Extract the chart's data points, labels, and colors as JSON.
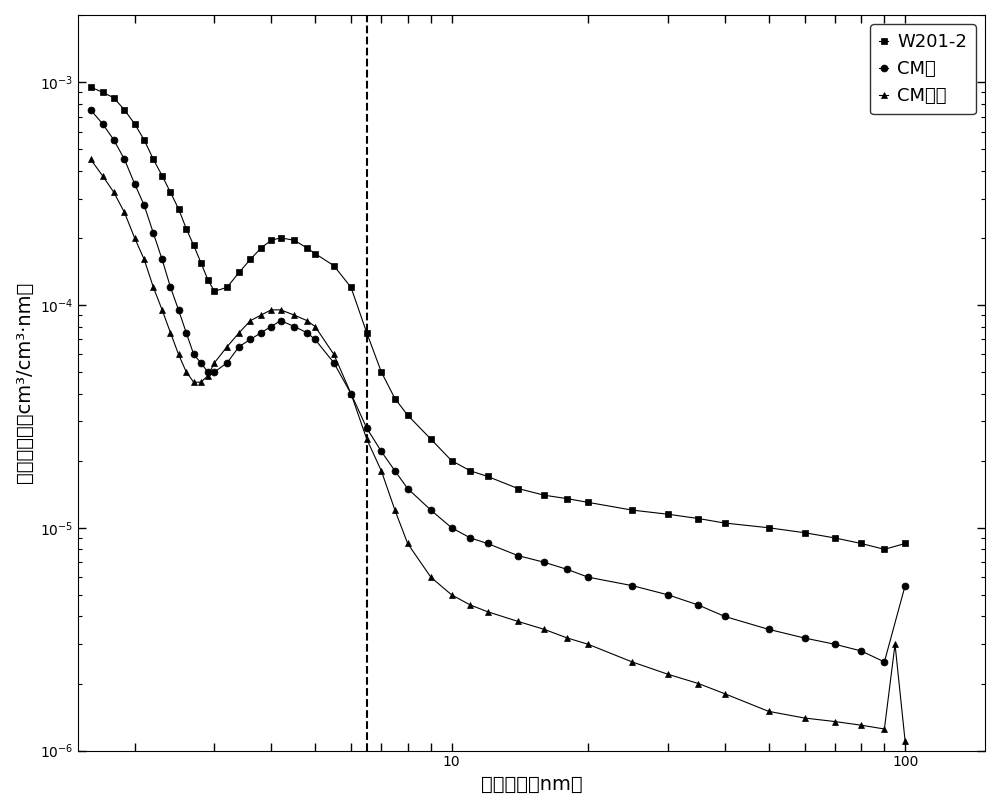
{
  "title": "",
  "xlabel": "孔隙直径（nm）",
  "ylabel": "孔体积分布（cm³/cm³·nm）",
  "xlim": [
    1.5,
    150
  ],
  "ylim": [
    1e-06,
    0.002
  ],
  "dashed_line_x": 6.5,
  "legend_labels": [
    "W201-2",
    "CM水",
    "CM甲苯"
  ],
  "markers": [
    "s",
    "o",
    "^"
  ],
  "color": "black",
  "series_W201_2": {
    "x": [
      1.6,
      1.7,
      1.8,
      1.9,
      2.0,
      2.1,
      2.2,
      2.3,
      2.4,
      2.5,
      2.6,
      2.7,
      2.8,
      2.9,
      3.0,
      3.2,
      3.4,
      3.6,
      3.8,
      4.0,
      4.2,
      4.5,
      4.8,
      5.0,
      5.5,
      6.0,
      6.5,
      7.0,
      7.5,
      8.0,
      9.0,
      10.0,
      11.0,
      12.0,
      14.0,
      16.0,
      18.0,
      20.0,
      25.0,
      30.0,
      35.0,
      40.0,
      50.0,
      60.0,
      70.0,
      80.0,
      90.0,
      100.0
    ],
    "y": [
      0.00095,
      0.0009,
      0.00085,
      0.00075,
      0.00065,
      0.00055,
      0.00045,
      0.00038,
      0.00032,
      0.00027,
      0.00022,
      0.000185,
      0.000155,
      0.00013,
      0.000115,
      0.00012,
      0.00014,
      0.00016,
      0.00018,
      0.000195,
      0.0002,
      0.000195,
      0.00018,
      0.00017,
      0.00015,
      0.00012,
      7.5e-05,
      5e-05,
      3.8e-05,
      3.2e-05,
      2.5e-05,
      2e-05,
      1.8e-05,
      1.7e-05,
      1.5e-05,
      1.4e-05,
      1.35e-05,
      1.3e-05,
      1.2e-05,
      1.15e-05,
      1.1e-05,
      1.05e-05,
      1e-05,
      9.5e-06,
      9e-06,
      8.5e-06,
      8e-06,
      8.5e-06
    ]
  },
  "series_CM_water": {
    "x": [
      1.6,
      1.7,
      1.8,
      1.9,
      2.0,
      2.1,
      2.2,
      2.3,
      2.4,
      2.5,
      2.6,
      2.7,
      2.8,
      2.9,
      3.0,
      3.2,
      3.4,
      3.6,
      3.8,
      4.0,
      4.2,
      4.5,
      4.8,
      5.0,
      5.5,
      6.0,
      6.5,
      7.0,
      7.5,
      8.0,
      9.0,
      10.0,
      11.0,
      12.0,
      14.0,
      16.0,
      18.0,
      20.0,
      25.0,
      30.0,
      35.0,
      40.0,
      50.0,
      60.0,
      70.0,
      80.0,
      90.0,
      100.0
    ],
    "y": [
      0.00075,
      0.00065,
      0.00055,
      0.00045,
      0.00035,
      0.00028,
      0.00021,
      0.00016,
      0.00012,
      9.5e-05,
      7.5e-05,
      6e-05,
      5.5e-05,
      5e-05,
      5e-05,
      5.5e-05,
      6.5e-05,
      7e-05,
      7.5e-05,
      8e-05,
      8.5e-05,
      8e-05,
      7.5e-05,
      7e-05,
      5.5e-05,
      4e-05,
      2.8e-05,
      2.2e-05,
      1.8e-05,
      1.5e-05,
      1.2e-05,
      1e-05,
      9e-06,
      8.5e-06,
      7.5e-06,
      7e-06,
      6.5e-06,
      6e-06,
      5.5e-06,
      5e-06,
      4.5e-06,
      4e-06,
      3.5e-06,
      3.2e-06,
      3e-06,
      2.8e-06,
      2.5e-06,
      5.5e-06
    ]
  },
  "series_CM_toluene": {
    "x": [
      1.6,
      1.7,
      1.8,
      1.9,
      2.0,
      2.1,
      2.2,
      2.3,
      2.4,
      2.5,
      2.6,
      2.7,
      2.8,
      2.9,
      3.0,
      3.2,
      3.4,
      3.6,
      3.8,
      4.0,
      4.2,
      4.5,
      4.8,
      5.0,
      5.5,
      6.0,
      6.5,
      7.0,
      7.5,
      8.0,
      9.0,
      10.0,
      11.0,
      12.0,
      14.0,
      16.0,
      18.0,
      20.0,
      25.0,
      30.0,
      35.0,
      40.0,
      50.0,
      60.0,
      70.0,
      80.0,
      90.0,
      95.0,
      100.0
    ],
    "y": [
      0.00045,
      0.00038,
      0.00032,
      0.00026,
      0.0002,
      0.00016,
      0.00012,
      9.5e-05,
      7.5e-05,
      6e-05,
      5e-05,
      4.5e-05,
      4.5e-05,
      4.8e-05,
      5.5e-05,
      6.5e-05,
      7.5e-05,
      8.5e-05,
      9e-05,
      9.5e-05,
      9.5e-05,
      9e-05,
      8.5e-05,
      8e-05,
      6e-05,
      4e-05,
      2.5e-05,
      1.8e-05,
      1.2e-05,
      8.5e-06,
      6e-06,
      5e-06,
      4.5e-06,
      4.2e-06,
      3.8e-06,
      3.5e-06,
      3.2e-06,
      3e-06,
      2.5e-06,
      2.2e-06,
      2e-06,
      1.8e-06,
      1.5e-06,
      1.4e-06,
      1.35e-06,
      1.3e-06,
      1.25e-06,
      3e-06,
      1.1e-06
    ]
  }
}
